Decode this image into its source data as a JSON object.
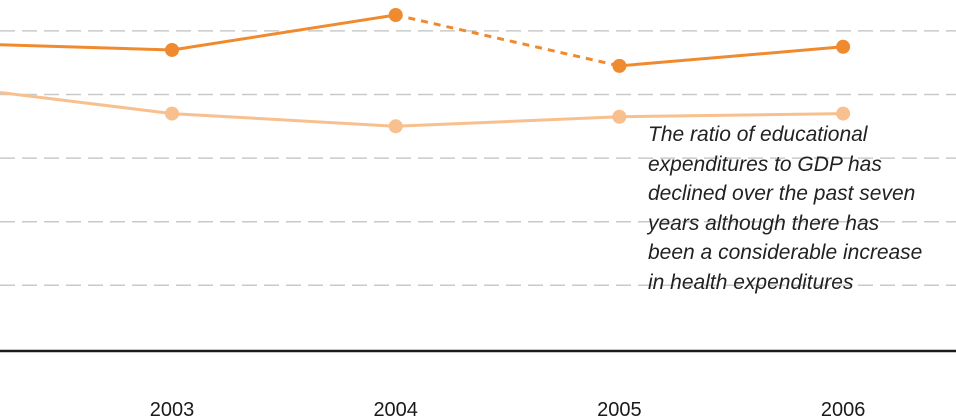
{
  "chart_data": {
    "type": "line",
    "x": [
      "2003",
      "2004",
      "2005",
      "2006"
    ],
    "grid": true,
    "series": [
      {
        "values": [
          6.4,
          7.5,
          5.9,
          6.5
        ],
        "color": "#f08a2e",
        "style": "solid; dashed between 2004 and 2005"
      },
      {
        "values": [
          4.4,
          4.0,
          4.3,
          4.4
        ],
        "color": "#f9c08f",
        "style": "solid"
      }
    ],
    "ylim": [
      -3.0,
      8.5
    ],
    "annotation_lines": [
      "The ratio of educational",
      "expenditures to GDP has",
      "declined over the past seven",
      "years although there has",
      "been a considerable increase",
      "in health expenditures"
    ]
  }
}
